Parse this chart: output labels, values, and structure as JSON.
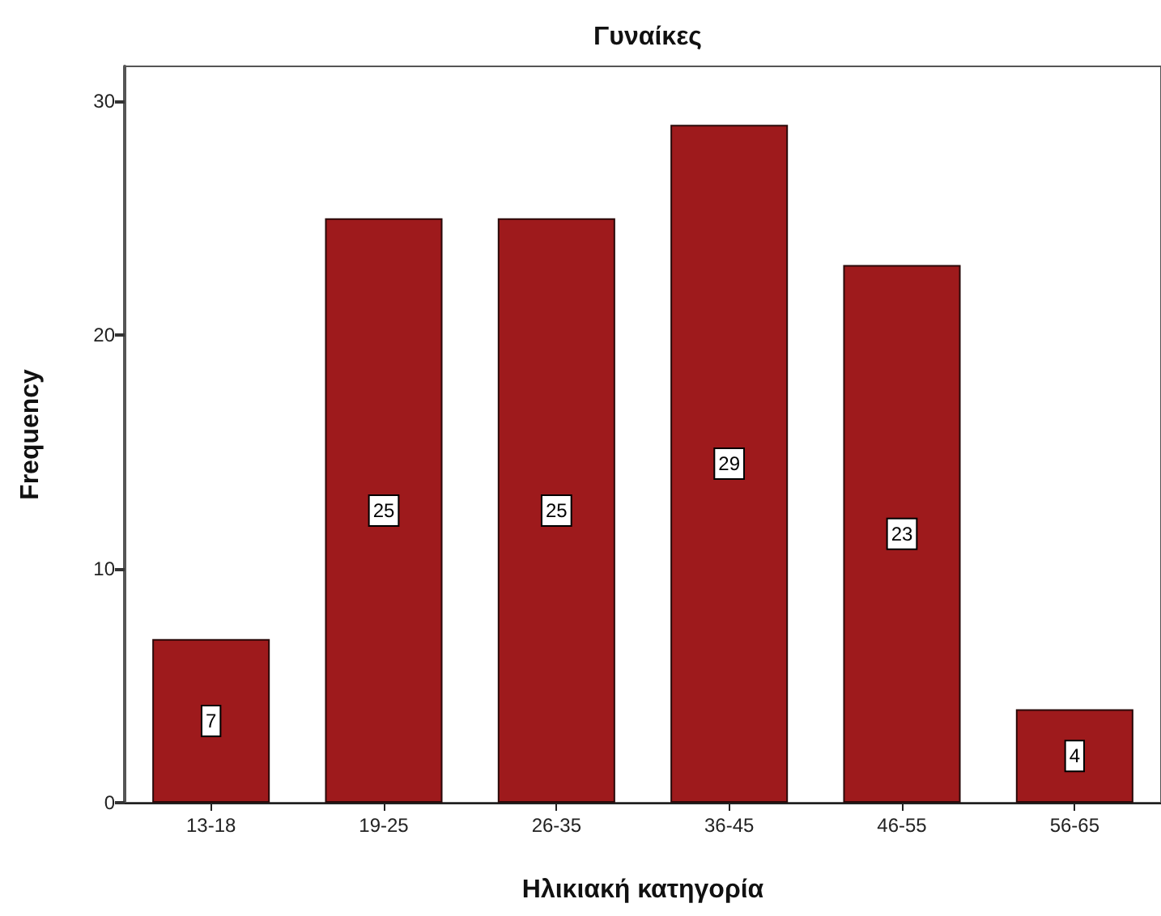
{
  "chart_data": {
    "type": "bar",
    "title": "Γυναίκες",
    "xlabel": "Ηλικιακή κατηγορία",
    "ylabel": "Frequency",
    "categories": [
      "13-18",
      "19-25",
      "26-35",
      "36-45",
      "46-55",
      "56-65"
    ],
    "values": [
      7,
      25,
      25,
      29,
      23,
      4
    ],
    "color": "#9e1a1c",
    "ylim": [
      0,
      31.5
    ],
    "yticks": [
      0,
      10,
      20,
      30
    ],
    "data_labels": true
  }
}
